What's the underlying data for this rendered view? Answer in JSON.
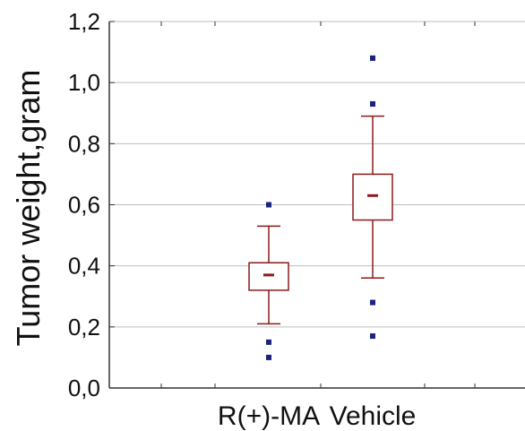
{
  "chart_data": {
    "type": "box",
    "ylabel": "Tumor weight,gram",
    "ylim": [
      0.0,
      1.2
    ],
    "y_ticks": [
      "0,0",
      "0,2",
      "0,4",
      "0,6",
      "0,8",
      "1,0",
      "1,2"
    ],
    "grid": true,
    "categories": [
      "R(+)-MA",
      "Vehicle"
    ],
    "boxes": [
      {
        "category": "R(+)-MA",
        "min": 0.21,
        "q1": 0.32,
        "median": 0.37,
        "q3": 0.41,
        "max": 0.53,
        "outliers": [
          0.6,
          0.15,
          0.1
        ]
      },
      {
        "category": "Vehicle",
        "min": 0.36,
        "q1": 0.55,
        "median": 0.63,
        "q3": 0.7,
        "max": 0.89,
        "outliers": [
          1.08,
          0.93,
          0.28,
          0.17
        ]
      }
    ],
    "colors": {
      "box": "#8b1a1a",
      "median": "#8b1a1a",
      "outlier": "#1a237e",
      "grid": "#bdbdbd",
      "axis": "#333333"
    }
  }
}
